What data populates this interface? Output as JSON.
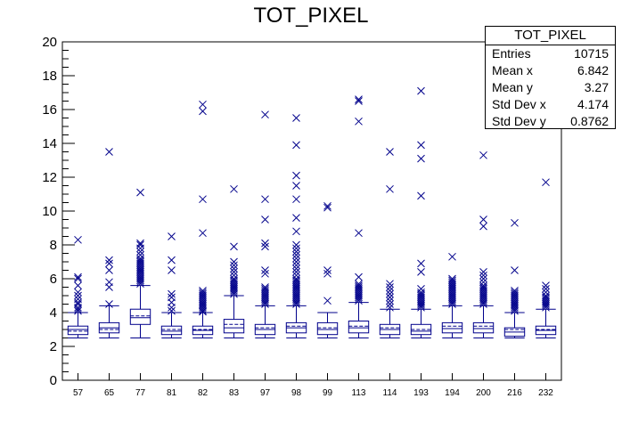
{
  "title": "TOT_PIXEL",
  "stats": {
    "name": "TOT_PIXEL",
    "rows": [
      {
        "label": "Entries",
        "value": "10715"
      },
      {
        "label": "Mean x",
        "value": "6.842"
      },
      {
        "label": "Mean y",
        "value": "3.27"
      },
      {
        "label": "Std Dev x",
        "value": "4.174"
      },
      {
        "label": "Std Dev y",
        "value": "0.8762"
      }
    ]
  },
  "colors": {
    "series": "#00008b",
    "axis": "#000000"
  },
  "chart_data": {
    "type": "box",
    "title": "TOT_PIXEL",
    "xlabel": "",
    "ylabel": "",
    "ylim": [
      0,
      20
    ],
    "yticks": [
      0,
      2,
      4,
      6,
      8,
      10,
      12,
      14,
      16,
      18,
      20
    ],
    "categories": [
      "57",
      "65",
      "77",
      "81",
      "82",
      "83",
      "97",
      "98",
      "99",
      "113",
      "114",
      "193",
      "194",
      "200",
      "216",
      "232"
    ],
    "boxes": [
      {
        "cat": "57",
        "min": 2.5,
        "q1": 2.7,
        "median": 3.0,
        "mean": 2.9,
        "q3": 3.2,
        "max": 4.0,
        "outliers": [
          4.1,
          4.2,
          4.3,
          4.5,
          4.6,
          4.8,
          5.0,
          5.2,
          5.6,
          6.0,
          6.1,
          8.3
        ]
      },
      {
        "cat": "65",
        "min": 2.5,
        "q1": 2.8,
        "median": 3.1,
        "mean": 3.0,
        "q3": 3.4,
        "max": 4.4,
        "outliers": [
          4.5,
          5.5,
          5.8,
          6.5,
          6.9,
          7.1,
          13.5
        ]
      },
      {
        "cat": "77",
        "min": 2.5,
        "q1": 3.3,
        "median": 3.7,
        "mean": 3.8,
        "q3": 4.2,
        "max": 5.6,
        "outliers": [
          5.7,
          5.8,
          5.9,
          6.0,
          6.1,
          6.2,
          6.3,
          6.4,
          6.5,
          6.6,
          6.7,
          6.8,
          6.9,
          7.0,
          7.1,
          7.2,
          7.4,
          7.6,
          7.8,
          8.0,
          8.1,
          11.1
        ]
      },
      {
        "cat": "81",
        "min": 2.5,
        "q1": 2.7,
        "median": 2.9,
        "mean": 3.0,
        "q3": 3.2,
        "max": 4.0,
        "outliers": [
          4.1,
          4.3,
          4.6,
          4.9,
          5.1,
          6.5,
          7.1,
          8.5
        ]
      },
      {
        "cat": "82",
        "min": 2.5,
        "q1": 2.7,
        "median": 2.95,
        "mean": 3.0,
        "q3": 3.2,
        "max": 4.0,
        "outliers": [
          4.05,
          4.1,
          4.2,
          4.3,
          4.4,
          4.5,
          4.6,
          4.7,
          4.8,
          4.9,
          5.0,
          5.1,
          5.2,
          5.3,
          8.7,
          10.7,
          15.9,
          16.3
        ]
      },
      {
        "cat": "83",
        "min": 2.5,
        "q1": 2.8,
        "median": 3.1,
        "mean": 3.3,
        "q3": 3.6,
        "max": 5.0,
        "outliers": [
          5.1,
          5.2,
          5.3,
          5.4,
          5.5,
          5.6,
          5.7,
          5.8,
          5.9,
          6.0,
          6.2,
          6.4,
          6.6,
          6.8,
          7.0,
          7.9,
          11.3
        ]
      },
      {
        "cat": "97",
        "min": 2.5,
        "q1": 2.7,
        "median": 3.0,
        "mean": 3.1,
        "q3": 3.3,
        "max": 4.4,
        "outliers": [
          4.5,
          4.6,
          4.7,
          4.8,
          4.9,
          5.0,
          5.1,
          5.2,
          5.3,
          5.4,
          5.5,
          6.3,
          6.5,
          7.9,
          8.1,
          9.5,
          10.7,
          15.7
        ]
      },
      {
        "cat": "98",
        "min": 2.5,
        "q1": 2.8,
        "median": 3.1,
        "mean": 3.2,
        "q3": 3.4,
        "max": 4.4,
        "outliers": [
          4.5,
          4.6,
          4.7,
          4.8,
          4.9,
          5.0,
          5.1,
          5.2,
          5.3,
          5.4,
          5.5,
          5.6,
          5.7,
          5.8,
          5.9,
          6.0,
          6.2,
          6.4,
          6.6,
          6.8,
          7.0,
          7.2,
          7.4,
          7.6,
          7.8,
          8.0,
          8.8,
          9.6,
          10.7,
          11.5,
          12.1,
          13.9,
          15.5
        ]
      },
      {
        "cat": "99",
        "min": 2.5,
        "q1": 2.7,
        "median": 3.0,
        "mean": 3.1,
        "q3": 3.4,
        "max": 4.0,
        "outliers": [
          4.7,
          6.3,
          6.5,
          10.2,
          10.3
        ]
      },
      {
        "cat": "113",
        "min": 2.5,
        "q1": 2.8,
        "median": 3.1,
        "mean": 3.2,
        "q3": 3.5,
        "max": 4.6,
        "outliers": [
          4.7,
          4.8,
          4.9,
          5.0,
          5.1,
          5.2,
          5.3,
          5.4,
          5.5,
          5.6,
          5.7,
          6.1,
          8.7,
          15.3,
          16.5,
          16.6
        ]
      },
      {
        "cat": "114",
        "min": 2.5,
        "q1": 2.7,
        "median": 3.0,
        "mean": 3.1,
        "q3": 3.3,
        "max": 4.2,
        "outliers": [
          4.3,
          4.5,
          4.7,
          4.9,
          5.1,
          5.3,
          5.5,
          5.7,
          11.3,
          13.5
        ]
      },
      {
        "cat": "193",
        "min": 2.5,
        "q1": 2.7,
        "median": 2.9,
        "mean": 3.0,
        "q3": 3.3,
        "max": 4.2,
        "outliers": [
          4.3,
          4.4,
          4.5,
          4.6,
          4.7,
          4.8,
          4.9,
          5.0,
          5.1,
          5.2,
          5.4,
          6.4,
          6.9,
          10.9,
          13.1,
          13.9,
          17.1
        ]
      },
      {
        "cat": "194",
        "min": 2.5,
        "q1": 2.8,
        "median": 3.05,
        "mean": 3.2,
        "q3": 3.4,
        "max": 4.4,
        "outliers": [
          4.5,
          4.6,
          4.7,
          4.8,
          4.9,
          5.0,
          5.1,
          5.2,
          5.3,
          5.4,
          5.5,
          5.6,
          5.7,
          5.8,
          5.9,
          6.0,
          7.3
        ]
      },
      {
        "cat": "200",
        "min": 2.5,
        "q1": 2.8,
        "median": 3.05,
        "mean": 3.2,
        "q3": 3.4,
        "max": 4.4,
        "outliers": [
          4.5,
          4.6,
          4.7,
          4.8,
          4.9,
          5.0,
          5.1,
          5.2,
          5.3,
          5.4,
          5.5,
          5.6,
          5.8,
          6.0,
          6.2,
          6.4,
          9.1,
          9.5,
          13.3
        ]
      },
      {
        "cat": "216",
        "min": 2.5,
        "q1": 2.6,
        "median": 2.85,
        "mean": 3.0,
        "q3": 3.1,
        "max": 4.0,
        "outliers": [
          4.1,
          4.2,
          4.3,
          4.4,
          4.5,
          4.6,
          4.7,
          4.8,
          4.9,
          5.0,
          5.1,
          5.2,
          5.3,
          6.5,
          9.3
        ]
      },
      {
        "cat": "232",
        "min": 2.5,
        "q1": 2.7,
        "median": 2.95,
        "mean": 3.0,
        "q3": 3.2,
        "max": 4.2,
        "outliers": [
          4.3,
          4.4,
          4.5,
          4.6,
          4.7,
          4.8,
          4.9,
          5.0,
          5.2,
          5.4,
          5.6,
          11.7
        ]
      }
    ]
  }
}
